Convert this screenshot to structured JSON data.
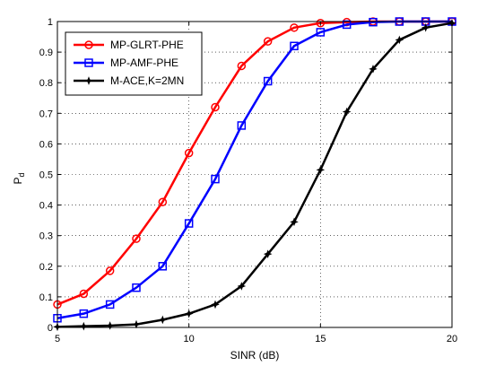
{
  "chart_data": {
    "type": "line",
    "xlabel": "SINR (dB)",
    "ylabel": "P",
    "ylabel_subscript": "d",
    "xlim": [
      5,
      20
    ],
    "ylim": [
      0,
      1
    ],
    "xticks": [
      5,
      10,
      15,
      20
    ],
    "yticks": [
      0,
      0.1,
      0.2,
      0.3,
      0.4,
      0.5,
      0.6,
      0.7,
      0.8,
      0.9,
      1
    ],
    "grid": "dotted",
    "legend_position": "top-left",
    "x": [
      5,
      6,
      7,
      8,
      9,
      10,
      11,
      12,
      13,
      14,
      15,
      16,
      17,
      18,
      19,
      20
    ],
    "series": [
      {
        "name": "MP-GLRT-PHE",
        "color": "#ff0000",
        "marker": "circle",
        "values": [
          0.075,
          0.11,
          0.185,
          0.29,
          0.41,
          0.57,
          0.72,
          0.855,
          0.935,
          0.98,
          0.995,
          0.998,
          1.0,
          1.0,
          1.0,
          1.0
        ]
      },
      {
        "name": "MP-AMF-PHE",
        "color": "#0000ff",
        "marker": "square",
        "values": [
          0.03,
          0.045,
          0.075,
          0.13,
          0.2,
          0.34,
          0.485,
          0.66,
          0.805,
          0.92,
          0.965,
          0.99,
          0.998,
          1.0,
          1.0,
          1.0
        ]
      },
      {
        "name": "M-ACE,K=2MN",
        "color": "#000000",
        "marker": "star",
        "values": [
          0.002,
          0.004,
          0.006,
          0.01,
          0.025,
          0.045,
          0.075,
          0.135,
          0.24,
          0.345,
          0.515,
          0.705,
          0.845,
          0.94,
          0.98,
          0.995
        ]
      }
    ]
  }
}
